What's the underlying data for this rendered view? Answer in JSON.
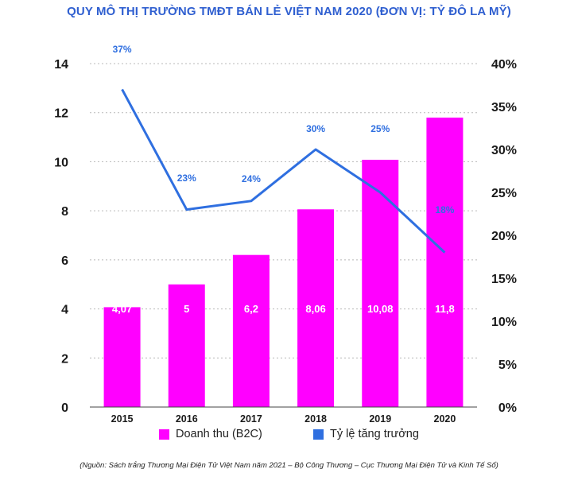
{
  "chart_data": {
    "type": "bar",
    "title": "QUY MÔ THỊ TRƯỜNG TMĐT BÁN LẺ VIỆT NAM 2020 (ĐƠN VỊ: TỶ ĐÔ LA MỸ)",
    "categories": [
      "2015",
      "2016",
      "2017",
      "2018",
      "2019",
      "2020"
    ],
    "series": [
      {
        "name": "Doanh thu (B2C)",
        "type": "bar",
        "axis": "left",
        "values": [
          4.07,
          5,
          6.2,
          8.06,
          10.08,
          11.8
        ],
        "labels": [
          "4,07",
          "5",
          "6,2",
          "8,06",
          "10,08",
          "11,8"
        ],
        "color": "#ff00ff"
      },
      {
        "name": "Tỷ lệ tăng trưởng",
        "type": "line",
        "axis": "right",
        "values": [
          37,
          23,
          24,
          30,
          25,
          18
        ],
        "labels": [
          "37%",
          "23%",
          "24%",
          "30%",
          "25%",
          "18%"
        ],
        "color": "#2f6fe0"
      }
    ],
    "y_left": {
      "ylim": [
        0,
        14
      ],
      "ticks": [
        "0",
        "2",
        "4",
        "6",
        "8",
        "10",
        "12",
        "14"
      ]
    },
    "y_right": {
      "ylim": [
        0,
        40
      ],
      "ticks": [
        "0%",
        "5%",
        "10%",
        "15%",
        "20%",
        "25%",
        "30%",
        "35%",
        "40%"
      ]
    },
    "grid": "dotted horizontal",
    "legend_position": "bottom"
  },
  "source_note": "(Nguồn: Sách trắng Thương Mại Điện Tử Việt Nam năm 2021 – Bộ Công Thương – Cục Thương Mại Điện Tử và Kinh Tế Số)"
}
